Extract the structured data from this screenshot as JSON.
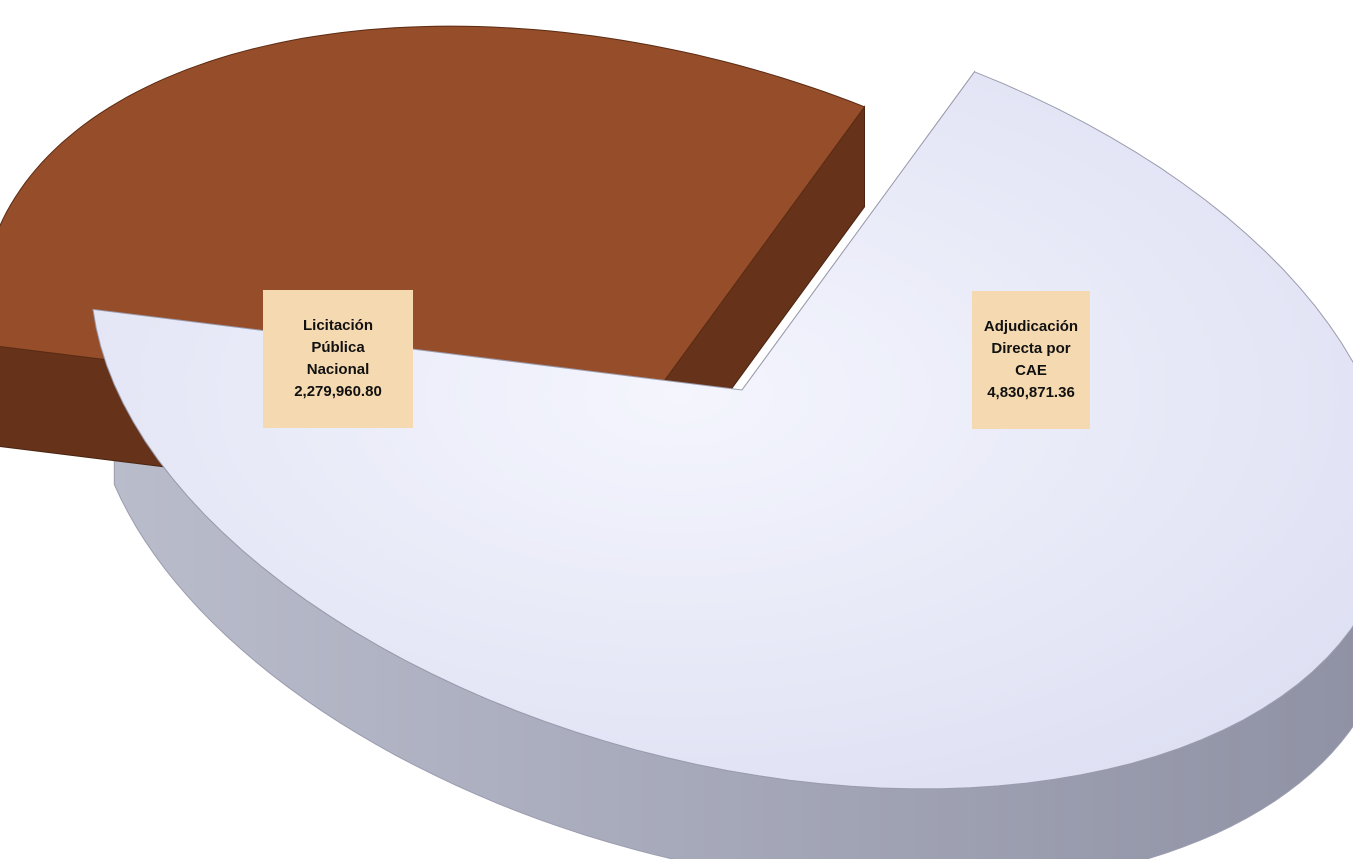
{
  "chart_data": {
    "type": "pie",
    "style": "3d-exploded",
    "title": "",
    "slices": [
      {
        "label": "Licitación\nPública\nNacional",
        "value": 2279960.8,
        "value_text": "2,279,960.80",
        "color": "#954d2a",
        "side_color": "#66331a"
      },
      {
        "label": "Adjudicación\nDirecta por\nCAE",
        "value": 4830871.36,
        "value_text": "4,830,871.36",
        "color": "#e9eaf8",
        "side_color": "#9b9daf"
      }
    ],
    "legend": "none"
  }
}
